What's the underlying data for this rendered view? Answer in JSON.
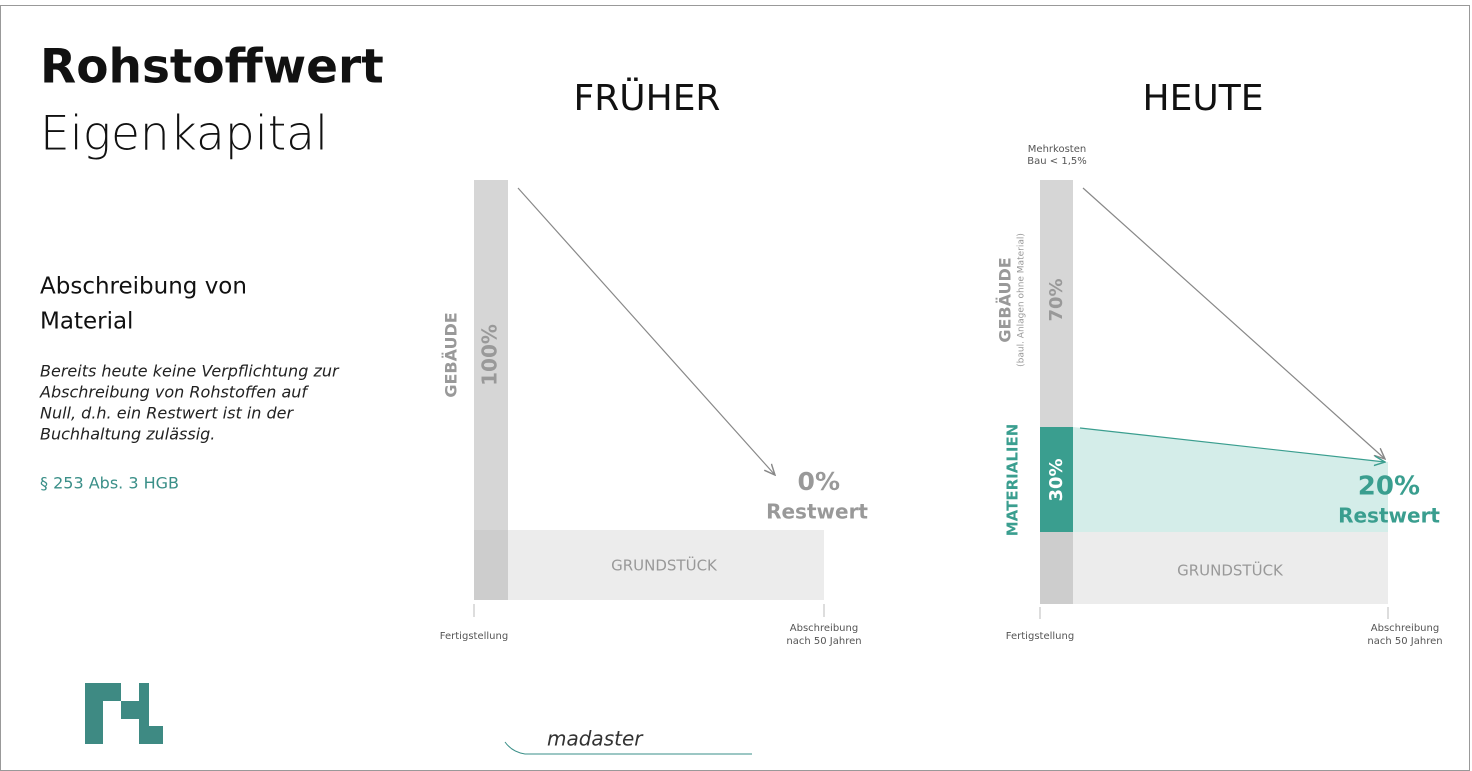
{
  "title": "Rohstoffwert",
  "subtitle": "Eigenkapital",
  "section": {
    "heading": [
      "Abschreibung von",
      "Material"
    ],
    "body": [
      "Bereits heute keine Verpflichtung zur",
      "Abschreibung von Rohstoffen auf",
      "Null, d.h. ein Restwert ist in der",
      "Buchhaltung zulässig."
    ],
    "reference": "§ 253 Abs. 3 HGB"
  },
  "before": {
    "heading": "FRÜHER",
    "building_label": "GEBÄUDE",
    "building_share": "100%",
    "residual": "0%",
    "residual_label": "Restwert",
    "land_label": "GRUNDSTÜCK",
    "start_label": "Fertigstellung",
    "end_label": [
      "Abschreibung",
      "nach 50 Jahren"
    ]
  },
  "today": {
    "heading": "HEUTE",
    "extra_cost": [
      "Mehrkosten",
      "Bau < 1,5%"
    ],
    "building_label": "GEBÄUDE",
    "building_note": "(baul. Anlagen ohne Material)",
    "building_share": "70%",
    "material_label": "MATERIALIEN",
    "material_share": "30%",
    "residual": "20%",
    "residual_label": "Restwert",
    "land_label": "GRUNDSTÜCK",
    "start_label": "Fertigstellung",
    "end_label": [
      "Abschreibung",
      "nach 50 Jahren"
    ]
  },
  "footer": "madaster"
}
